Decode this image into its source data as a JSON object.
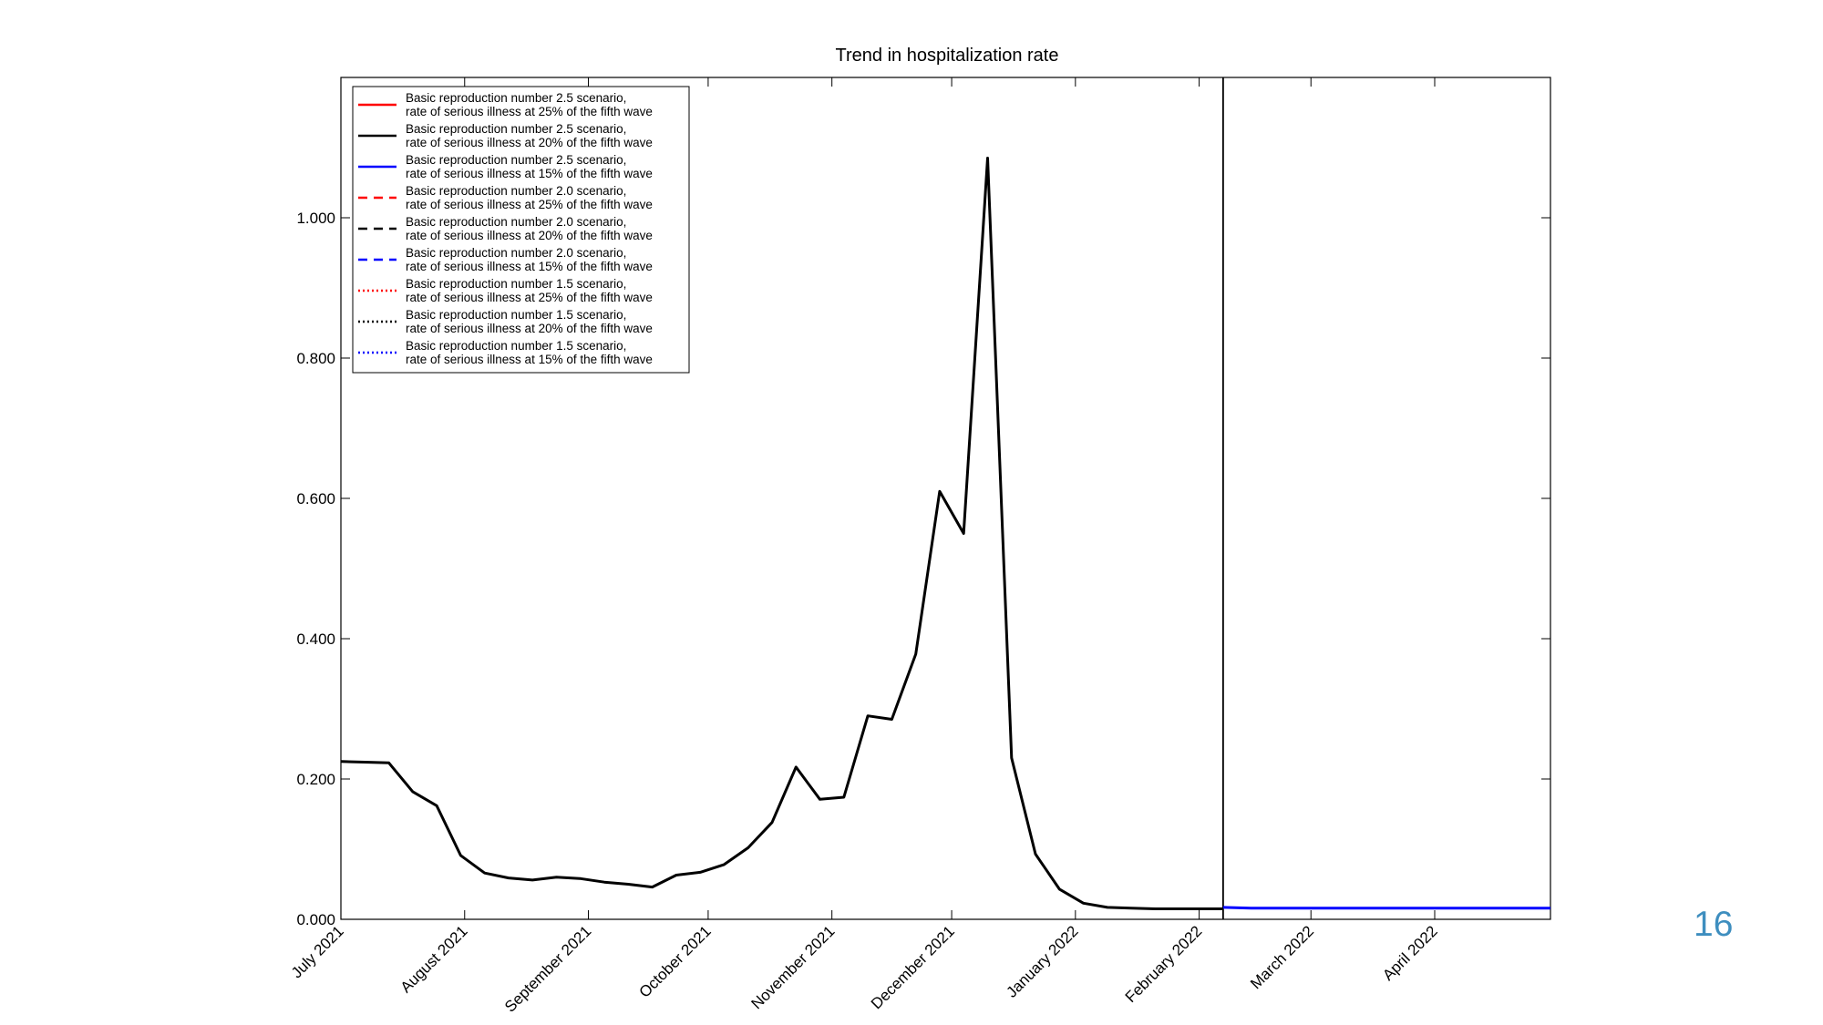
{
  "slide": {
    "page_number": "16",
    "page_number_color": "#3e8ebf"
  },
  "chart_data": {
    "type": "line",
    "title": "Trend in hospitalization rate",
    "xlabel": "",
    "ylabel": "",
    "grid": false,
    "legend_position": "top-left",
    "ylim": [
      0,
      1.2
    ],
    "xlim": [
      "2021-07-01",
      "2022-04-30"
    ],
    "yticks": [
      0,
      0.2,
      0.4,
      0.6,
      0.8,
      1.0
    ],
    "ytick_labels": [
      "0.000",
      "0.200",
      "0.400",
      "0.600",
      "0.800",
      "1.000"
    ],
    "xticks": [
      "2021-07-01",
      "2021-08-01",
      "2021-09-01",
      "2021-10-01",
      "2021-11-01",
      "2021-12-01",
      "2022-01-01",
      "2022-02-01",
      "2022-03-01",
      "2022-04-01"
    ],
    "xtick_labels": [
      "July 2021",
      "August 2021",
      "September 2021",
      "October 2021",
      "November 2021",
      "December 2021",
      "January 2022",
      "February 2022",
      "March 2022",
      "April 2022"
    ],
    "vertical_line": "2022-02-07",
    "series": [
      {
        "name": "Basic reproduction number 2.5 scenario,\nrate of serious illness at 25% of the fifth wave",
        "color": "#ff0000",
        "dash": "solid",
        "x": [],
        "y": []
      },
      {
        "name": "Basic reproduction number 2.5 scenario,\nrate of serious illness at 20% of the fifth wave",
        "color": "#000000",
        "dash": "solid",
        "x": [
          "2021-07-01",
          "2021-07-07",
          "2021-07-13",
          "2021-07-19",
          "2021-07-25",
          "2021-07-31",
          "2021-08-06",
          "2021-08-12",
          "2021-08-18",
          "2021-08-24",
          "2021-08-30",
          "2021-09-05",
          "2021-09-11",
          "2021-09-17",
          "2021-09-23",
          "2021-09-29",
          "2021-10-05",
          "2021-10-11",
          "2021-10-17",
          "2021-10-23",
          "2021-10-29",
          "2021-11-04",
          "2021-11-10",
          "2021-11-16",
          "2021-11-22",
          "2021-11-28",
          "2021-12-04",
          "2021-12-10",
          "2021-12-16",
          "2021-12-22",
          "2021-12-28",
          "2022-01-03",
          "2022-01-09",
          "2022-01-15",
          "2022-01-21",
          "2022-01-27",
          "2022-02-02",
          "2022-02-07"
        ],
        "y": [
          0.225,
          0.224,
          0.223,
          0.182,
          0.162,
          0.091,
          0.066,
          0.059,
          0.056,
          0.06,
          0.058,
          0.053,
          0.05,
          0.046,
          0.063,
          0.067,
          0.078,
          0.102,
          0.138,
          0.217,
          0.171,
          0.174,
          0.29,
          0.285,
          0.378,
          0.61,
          0.55,
          1.085,
          0.23,
          0.093,
          0.043,
          0.023,
          0.017,
          0.016,
          0.015,
          0.015,
          0.015,
          0.015
        ]
      },
      {
        "name": "Basic reproduction number 2.5 scenario,\nrate of serious illness at 15% of the fifth wave",
        "color": "#0000ff",
        "dash": "solid",
        "x": [
          "2022-02-07",
          "2022-02-14",
          "2022-02-21",
          "2022-03-01",
          "2022-03-15",
          "2022-04-01",
          "2022-04-15",
          "2022-04-30"
        ],
        "y": [
          0.017,
          0.016,
          0.016,
          0.016,
          0.016,
          0.016,
          0.016,
          0.016
        ]
      },
      {
        "name": "Basic reproduction number 2.0 scenario,\nrate of serious illness at 25% of the fifth wave",
        "color": "#ff0000",
        "dash": "dashed",
        "x": [],
        "y": []
      },
      {
        "name": "Basic reproduction number 2.0 scenario,\nrate of serious illness at 20% of the fifth wave",
        "color": "#000000",
        "dash": "dashed",
        "x": [],
        "y": []
      },
      {
        "name": "Basic reproduction number 2.0 scenario,\nrate of serious illness at 15% of the fifth wave",
        "color": "#0000ff",
        "dash": "dashed",
        "x": [],
        "y": []
      },
      {
        "name": "Basic reproduction number 1.5 scenario,\nrate of serious illness at 25% of the fifth wave",
        "color": "#ff0000",
        "dash": "dotted",
        "x": [],
        "y": []
      },
      {
        "name": "Basic reproduction number 1.5 scenario,\nrate of serious illness at 20% of the fifth wave",
        "color": "#000000",
        "dash": "dotted",
        "x": [],
        "y": []
      },
      {
        "name": "Basic reproduction number 1.5 scenario,\nrate of serious illness at 15% of the fifth wave",
        "color": "#0000ff",
        "dash": "dotted",
        "x": [],
        "y": []
      }
    ]
  }
}
